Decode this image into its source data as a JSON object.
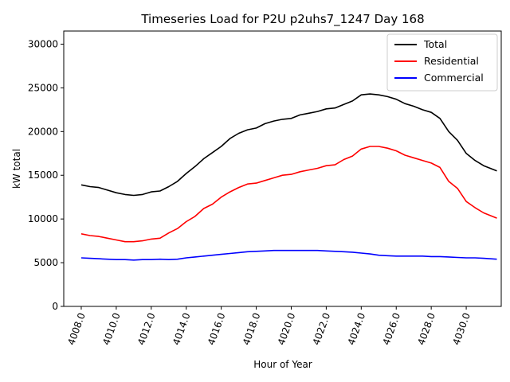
{
  "chart_data": {
    "type": "line",
    "title": "Timeseries Load for P2U p2uhs7_1247  Day 168",
    "xlabel": "Hour of Year",
    "ylabel": "kW total",
    "xlim": [
      4007.0,
      4032.0
    ],
    "ylim": [
      0,
      31500
    ],
    "xticks": [
      4008,
      4010,
      4012,
      4014,
      4016,
      4018,
      4020,
      4022,
      4024,
      4026,
      4028,
      4030
    ],
    "xtick_labels": [
      "4008.0",
      "4010.0",
      "4012.0",
      "4014.0",
      "4016.0",
      "4018.0",
      "4020.0",
      "4022.0",
      "4024.0",
      "4026.0",
      "4028.0",
      "4030.0"
    ],
    "yticks": [
      0,
      5000,
      10000,
      15000,
      20000,
      25000,
      30000
    ],
    "ytick_labels": [
      "0",
      "5000",
      "10000",
      "15000",
      "20000",
      "25000",
      "30000"
    ],
    "legend_position": "top-right",
    "x": [
      4008.0,
      4008.5,
      4009.0,
      4009.5,
      4010.0,
      4010.5,
      4011.0,
      4011.5,
      4012.0,
      4012.5,
      4013.0,
      4013.5,
      4014.0,
      4014.5,
      4015.0,
      4015.5,
      4016.0,
      4016.5,
      4017.0,
      4017.5,
      4018.0,
      4018.5,
      4019.0,
      4019.5,
      4020.0,
      4020.5,
      4021.0,
      4021.5,
      4022.0,
      4022.5,
      4023.0,
      4023.5,
      4024.0,
      4024.5,
      4025.0,
      4025.5,
      4026.0,
      4026.5,
      4027.0,
      4027.5,
      4028.0,
      4028.5,
      4029.0,
      4029.5,
      4030.0,
      4030.5,
      4031.0,
      4031.75
    ],
    "series": [
      {
        "name": "Total",
        "color": "#000000",
        "values": [
          13900,
          13700,
          13600,
          13300,
          13000,
          12800,
          12700,
          12800,
          13100,
          13200,
          13700,
          14300,
          15200,
          16000,
          16900,
          17600,
          18300,
          19200,
          19800,
          20200,
          20400,
          20900,
          21200,
          21400,
          21500,
          21900,
          22100,
          22300,
          22600,
          22700,
          23100,
          23500,
          24200,
          24300,
          24200,
          24000,
          23700,
          23200,
          22900,
          22500,
          22200,
          21500,
          20000,
          19000,
          17500,
          16700,
          16100,
          15500
        ]
      },
      {
        "name": "Residential",
        "color": "#ff0000",
        "values": [
          8300,
          8100,
          8000,
          7800,
          7600,
          7400,
          7400,
          7500,
          7700,
          7800,
          8400,
          8900,
          9700,
          10300,
          11200,
          11700,
          12500,
          13100,
          13600,
          14000,
          14100,
          14400,
          14700,
          15000,
          15100,
          15400,
          15600,
          15800,
          16100,
          16200,
          16800,
          17200,
          18000,
          18300,
          18300,
          18100,
          17800,
          17300,
          17000,
          16700,
          16400,
          15900,
          14300,
          13500,
          12000,
          11300,
          10700,
          10100
        ]
      },
      {
        "name": "Commercial",
        "color": "#0000ff",
        "values": [
          5550,
          5500,
          5450,
          5400,
          5350,
          5350,
          5300,
          5350,
          5350,
          5400,
          5350,
          5400,
          5550,
          5650,
          5750,
          5850,
          5950,
          6050,
          6150,
          6250,
          6300,
          6350,
          6400,
          6400,
          6400,
          6400,
          6400,
          6400,
          6350,
          6300,
          6250,
          6200,
          6100,
          6000,
          5850,
          5800,
          5750,
          5750,
          5750,
          5750,
          5700,
          5700,
          5650,
          5600,
          5550,
          5550,
          5500,
          5400
        ]
      }
    ]
  }
}
